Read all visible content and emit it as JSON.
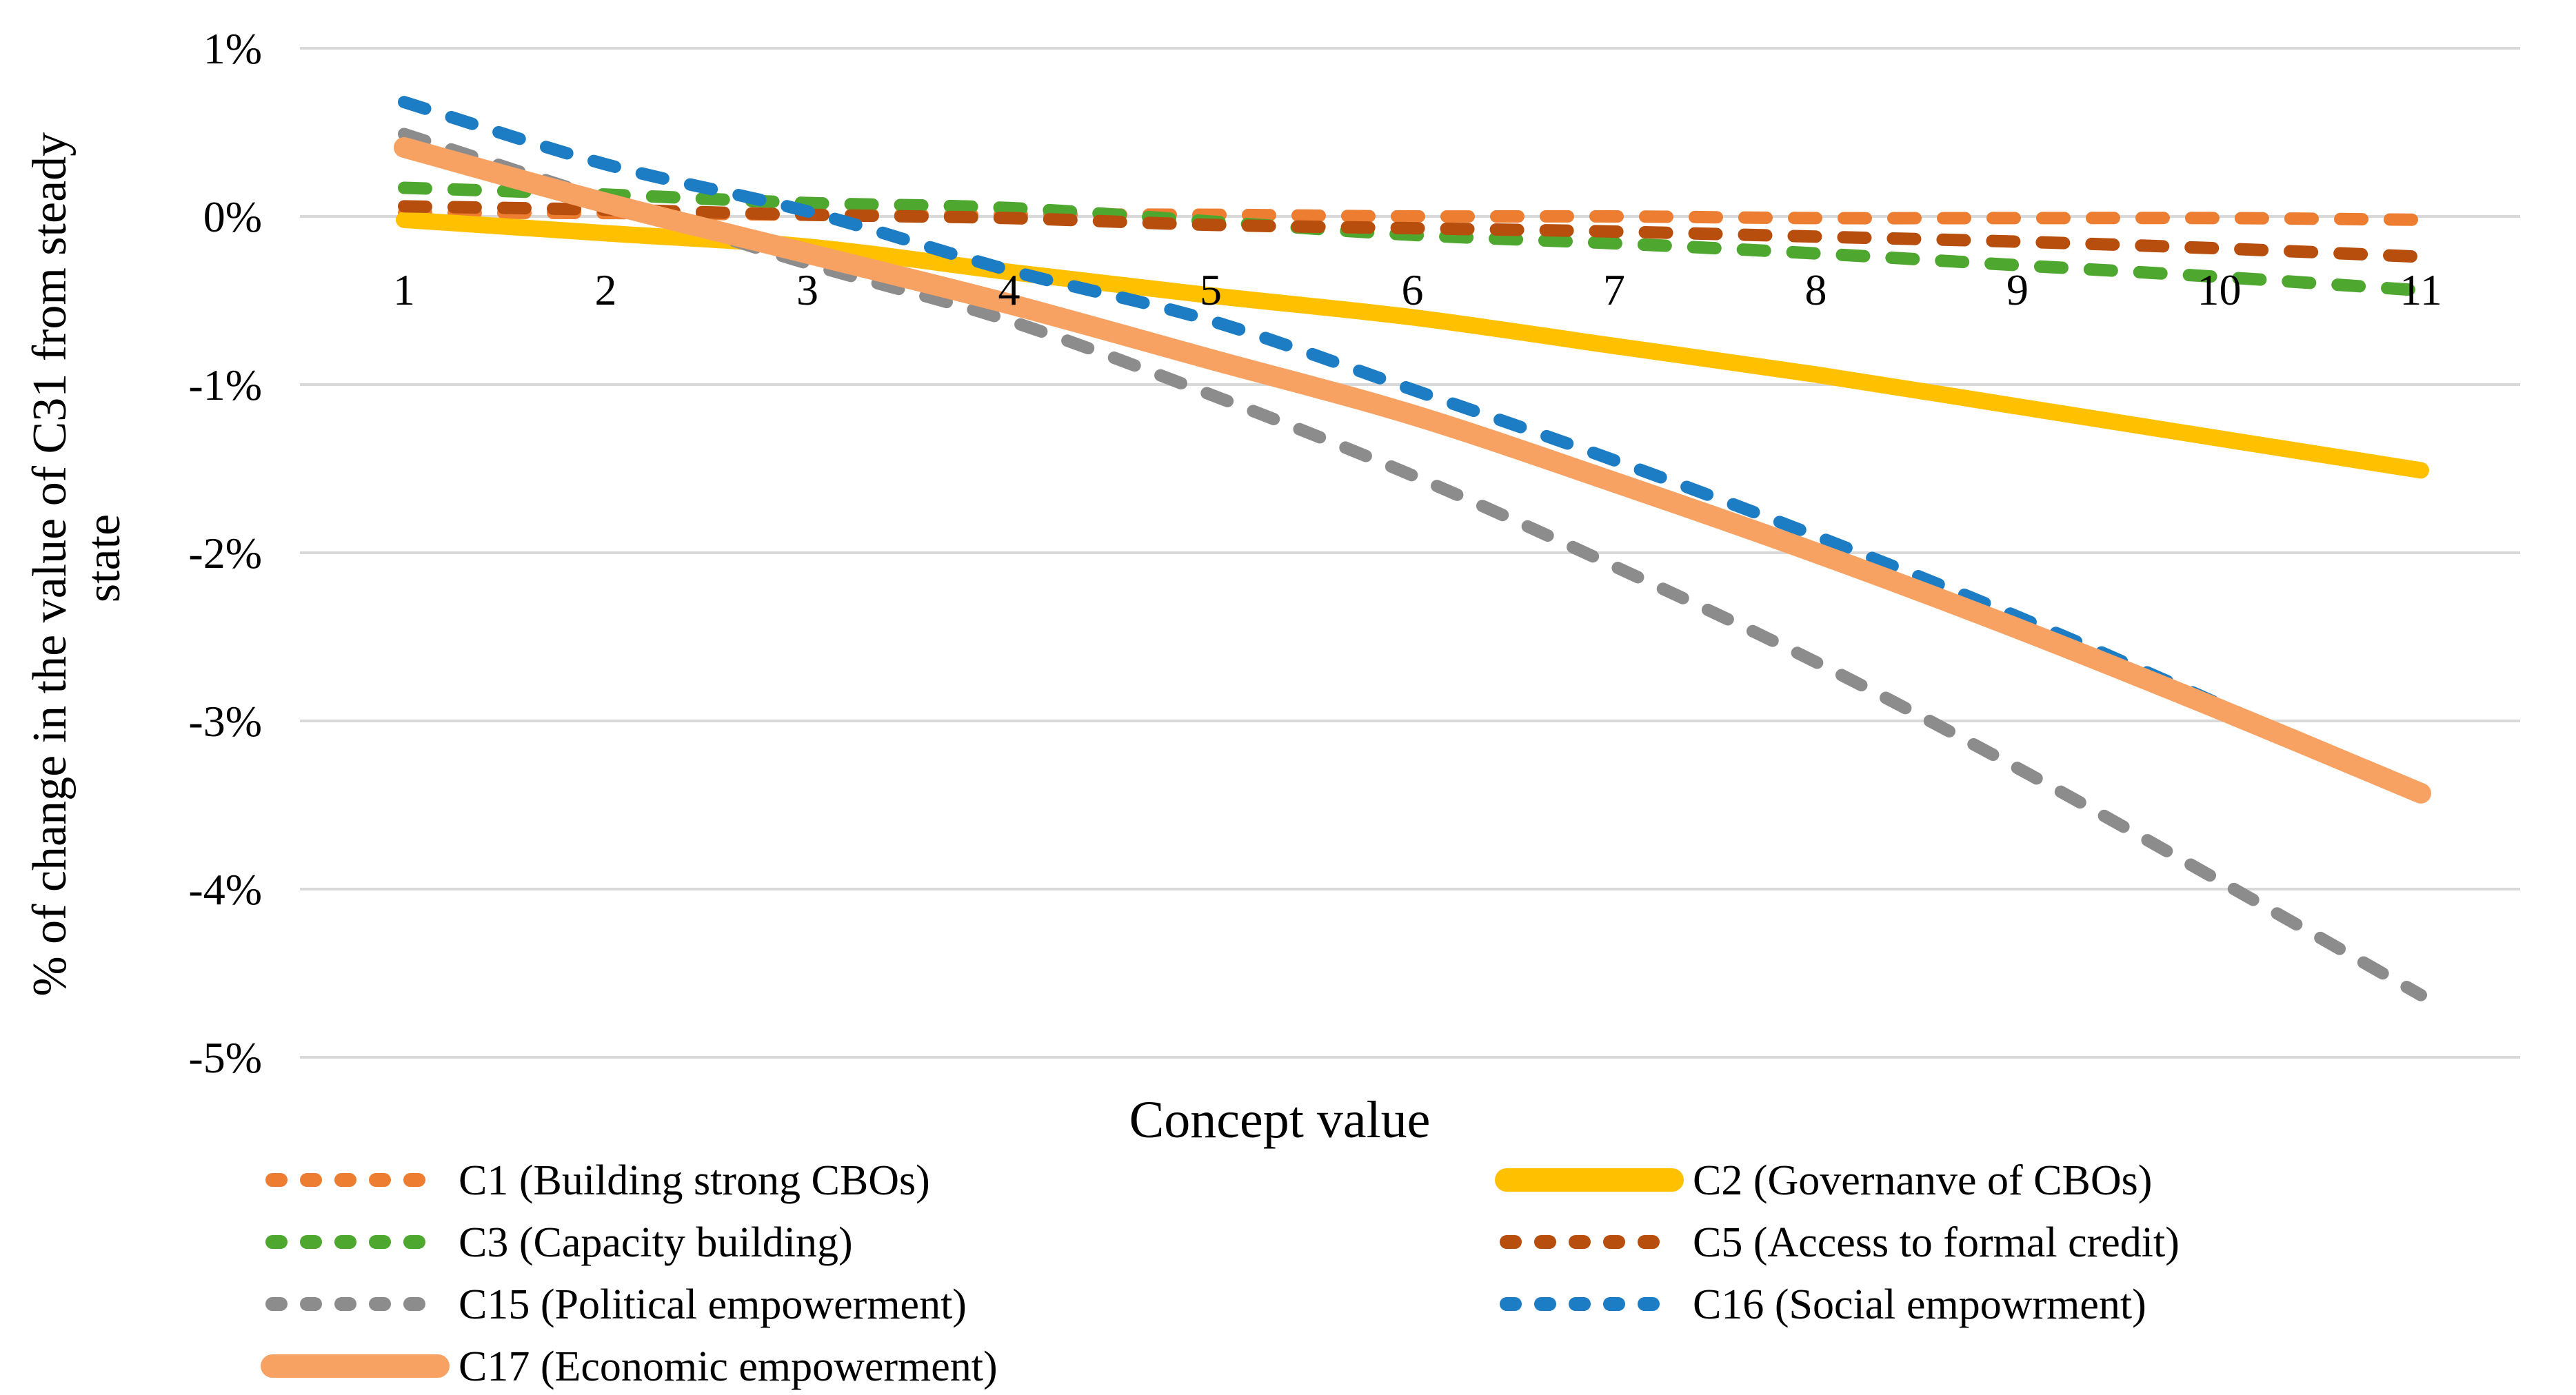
{
  "chart_data": {
    "type": "line",
    "title": "",
    "xlabel": "Concept value",
    "ylabel": "% of change in the value of C31 from steady state",
    "ylabel_lines": [
      "% of change in the value of C31 from steady",
      "state"
    ],
    "x": [
      1,
      2,
      3,
      4,
      5,
      6,
      7,
      8,
      9,
      10,
      11
    ],
    "x_tick_labels": [
      "1",
      "2",
      "3",
      "4",
      "5",
      "6",
      "7",
      "8",
      "9",
      "10",
      "11"
    ],
    "y_ticks": [
      {
        "value": 1,
        "label": "1%"
      },
      {
        "value": 0,
        "label": "0%"
      },
      {
        "value": -1,
        "label": "-1%"
      },
      {
        "value": -2,
        "label": "-2%"
      },
      {
        "value": -3,
        "label": "-3%"
      },
      {
        "value": -4,
        "label": "-4%"
      },
      {
        "value": -5,
        "label": "-5%"
      }
    ],
    "ylim": [
      -5.4,
      1.1
    ],
    "grid": "horizontal-only",
    "legend_position": "bottom-two-columns",
    "series": [
      {
        "id": "C1",
        "label": "C1 (Building strong CBOs)",
        "color": "#ED7D31",
        "style": "dashed",
        "width": 18,
        "values": [
          0.02,
          0.02,
          0.01,
          0.01,
          0.01,
          0.0,
          0.0,
          -0.01,
          -0.01,
          -0.01,
          -0.02
        ]
      },
      {
        "id": "C2",
        "label": "C2 (Governanve of CBOs)",
        "color": "#FFC000",
        "style": "solid",
        "width": 24,
        "values": [
          -0.02,
          -0.1,
          -0.18,
          -0.33,
          -0.47,
          -0.6,
          -0.77,
          -0.94,
          -1.13,
          -1.32,
          -1.51
        ]
      },
      {
        "id": "C3",
        "label": "C3 (Capacity building)",
        "color": "#4EA72E",
        "style": "dashed",
        "width": 18,
        "values": [
          0.17,
          0.13,
          0.08,
          0.05,
          -0.03,
          -0.11,
          -0.16,
          -0.22,
          -0.29,
          -0.36,
          -0.44
        ]
      },
      {
        "id": "C5",
        "label": "C5 (Access to formal credit)",
        "color": "#B84E0D",
        "style": "dashed",
        "width": 18,
        "values": [
          0.06,
          0.04,
          0.01,
          -0.01,
          -0.05,
          -0.07,
          -0.09,
          -0.12,
          -0.15,
          -0.19,
          -0.24
        ]
      },
      {
        "id": "C15",
        "label": "C15 (Political empowerment)",
        "color": "#8C8C8C",
        "style": "dashed",
        "width": 18,
        "values": [
          0.49,
          0.1,
          -0.28,
          -0.62,
          -1.06,
          -1.54,
          -2.08,
          -2.65,
          -3.28,
          -3.95,
          -4.63
        ]
      },
      {
        "id": "C16",
        "label": "C16 (Social empowrment)",
        "color": "#1C7CC4",
        "style": "dashed",
        "width": 18,
        "values": [
          0.68,
          0.31,
          0.03,
          -0.32,
          -0.62,
          -1.03,
          -1.45,
          -1.9,
          -2.38,
          -2.9,
          -3.44
        ]
      },
      {
        "id": "C17",
        "label": "C17 (Economic empowerment)",
        "color": "#F7A263",
        "style": "solid",
        "width": 30,
        "values": [
          0.41,
          0.08,
          -0.22,
          -0.52,
          -0.85,
          -1.18,
          -1.58,
          -2.0,
          -2.45,
          -2.93,
          -3.43
        ]
      }
    ],
    "legend_columns": [
      [
        "C1",
        "C3",
        "C15",
        "C17"
      ],
      [
        "C2",
        "C5",
        "C16"
      ]
    ]
  }
}
